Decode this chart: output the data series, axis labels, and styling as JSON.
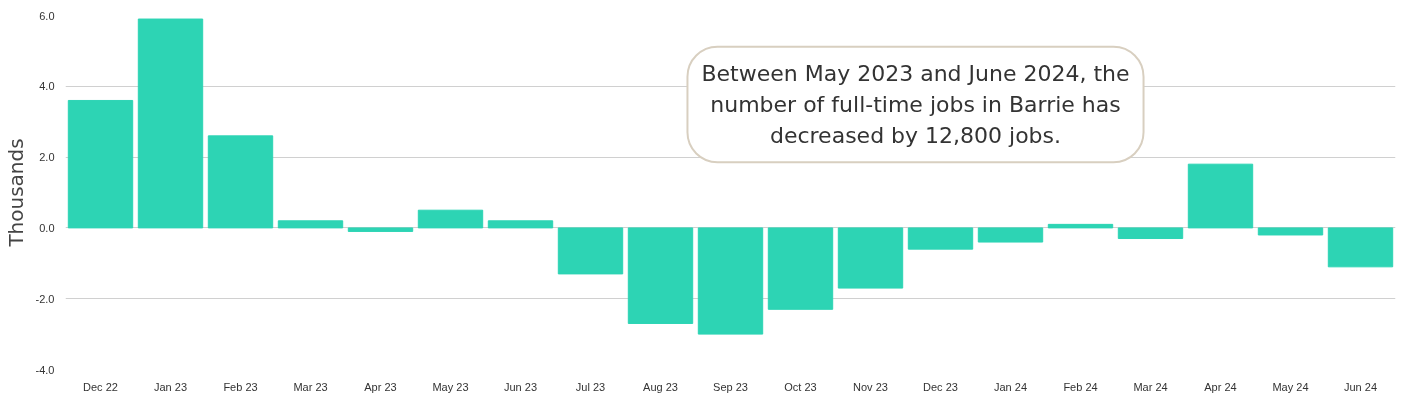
{
  "chart_data": {
    "type": "bar",
    "ylabel": "Thousands",
    "annotations": [
      "Between May 2023 and June 2024, the\nnumber of full-time jobs in Barrie has\ndecreased by 12,800 jobs."
    ],
    "categories": [
      "Dec 22",
      "Jan 23",
      "Feb 23",
      "Mar 23",
      "Apr 23",
      "May 23",
      "Jun 23",
      "Jul 23",
      "Aug 23",
      "Sep 23",
      "Oct 23",
      "Nov 23",
      "Dec 23",
      "Jan 24",
      "Feb 24",
      "Mar 24",
      "Apr 24",
      "May 24",
      "Jun 24"
    ],
    "values": [
      3.6,
      5.9,
      2.6,
      0.2,
      -0.1,
      0.5,
      0.2,
      -1.3,
      -2.7,
      -3.0,
      -2.3,
      -1.7,
      -0.6,
      -0.4,
      0.1,
      -0.3,
      1.8,
      -0.2,
      -1.1
    ],
    "color": "#2dd4b4",
    "ylim": [
      -4,
      6
    ],
    "yticks": [
      {
        "value": -4,
        "label": "-4.0"
      },
      {
        "value": -2,
        "label": "-2.0"
      },
      {
        "value": 0,
        "label": "0.0"
      },
      {
        "value": 2,
        "label": "2.0"
      },
      {
        "value": 4,
        "label": "4.0"
      },
      {
        "value": 6,
        "label": "6.0"
      }
    ],
    "grid": "y"
  }
}
